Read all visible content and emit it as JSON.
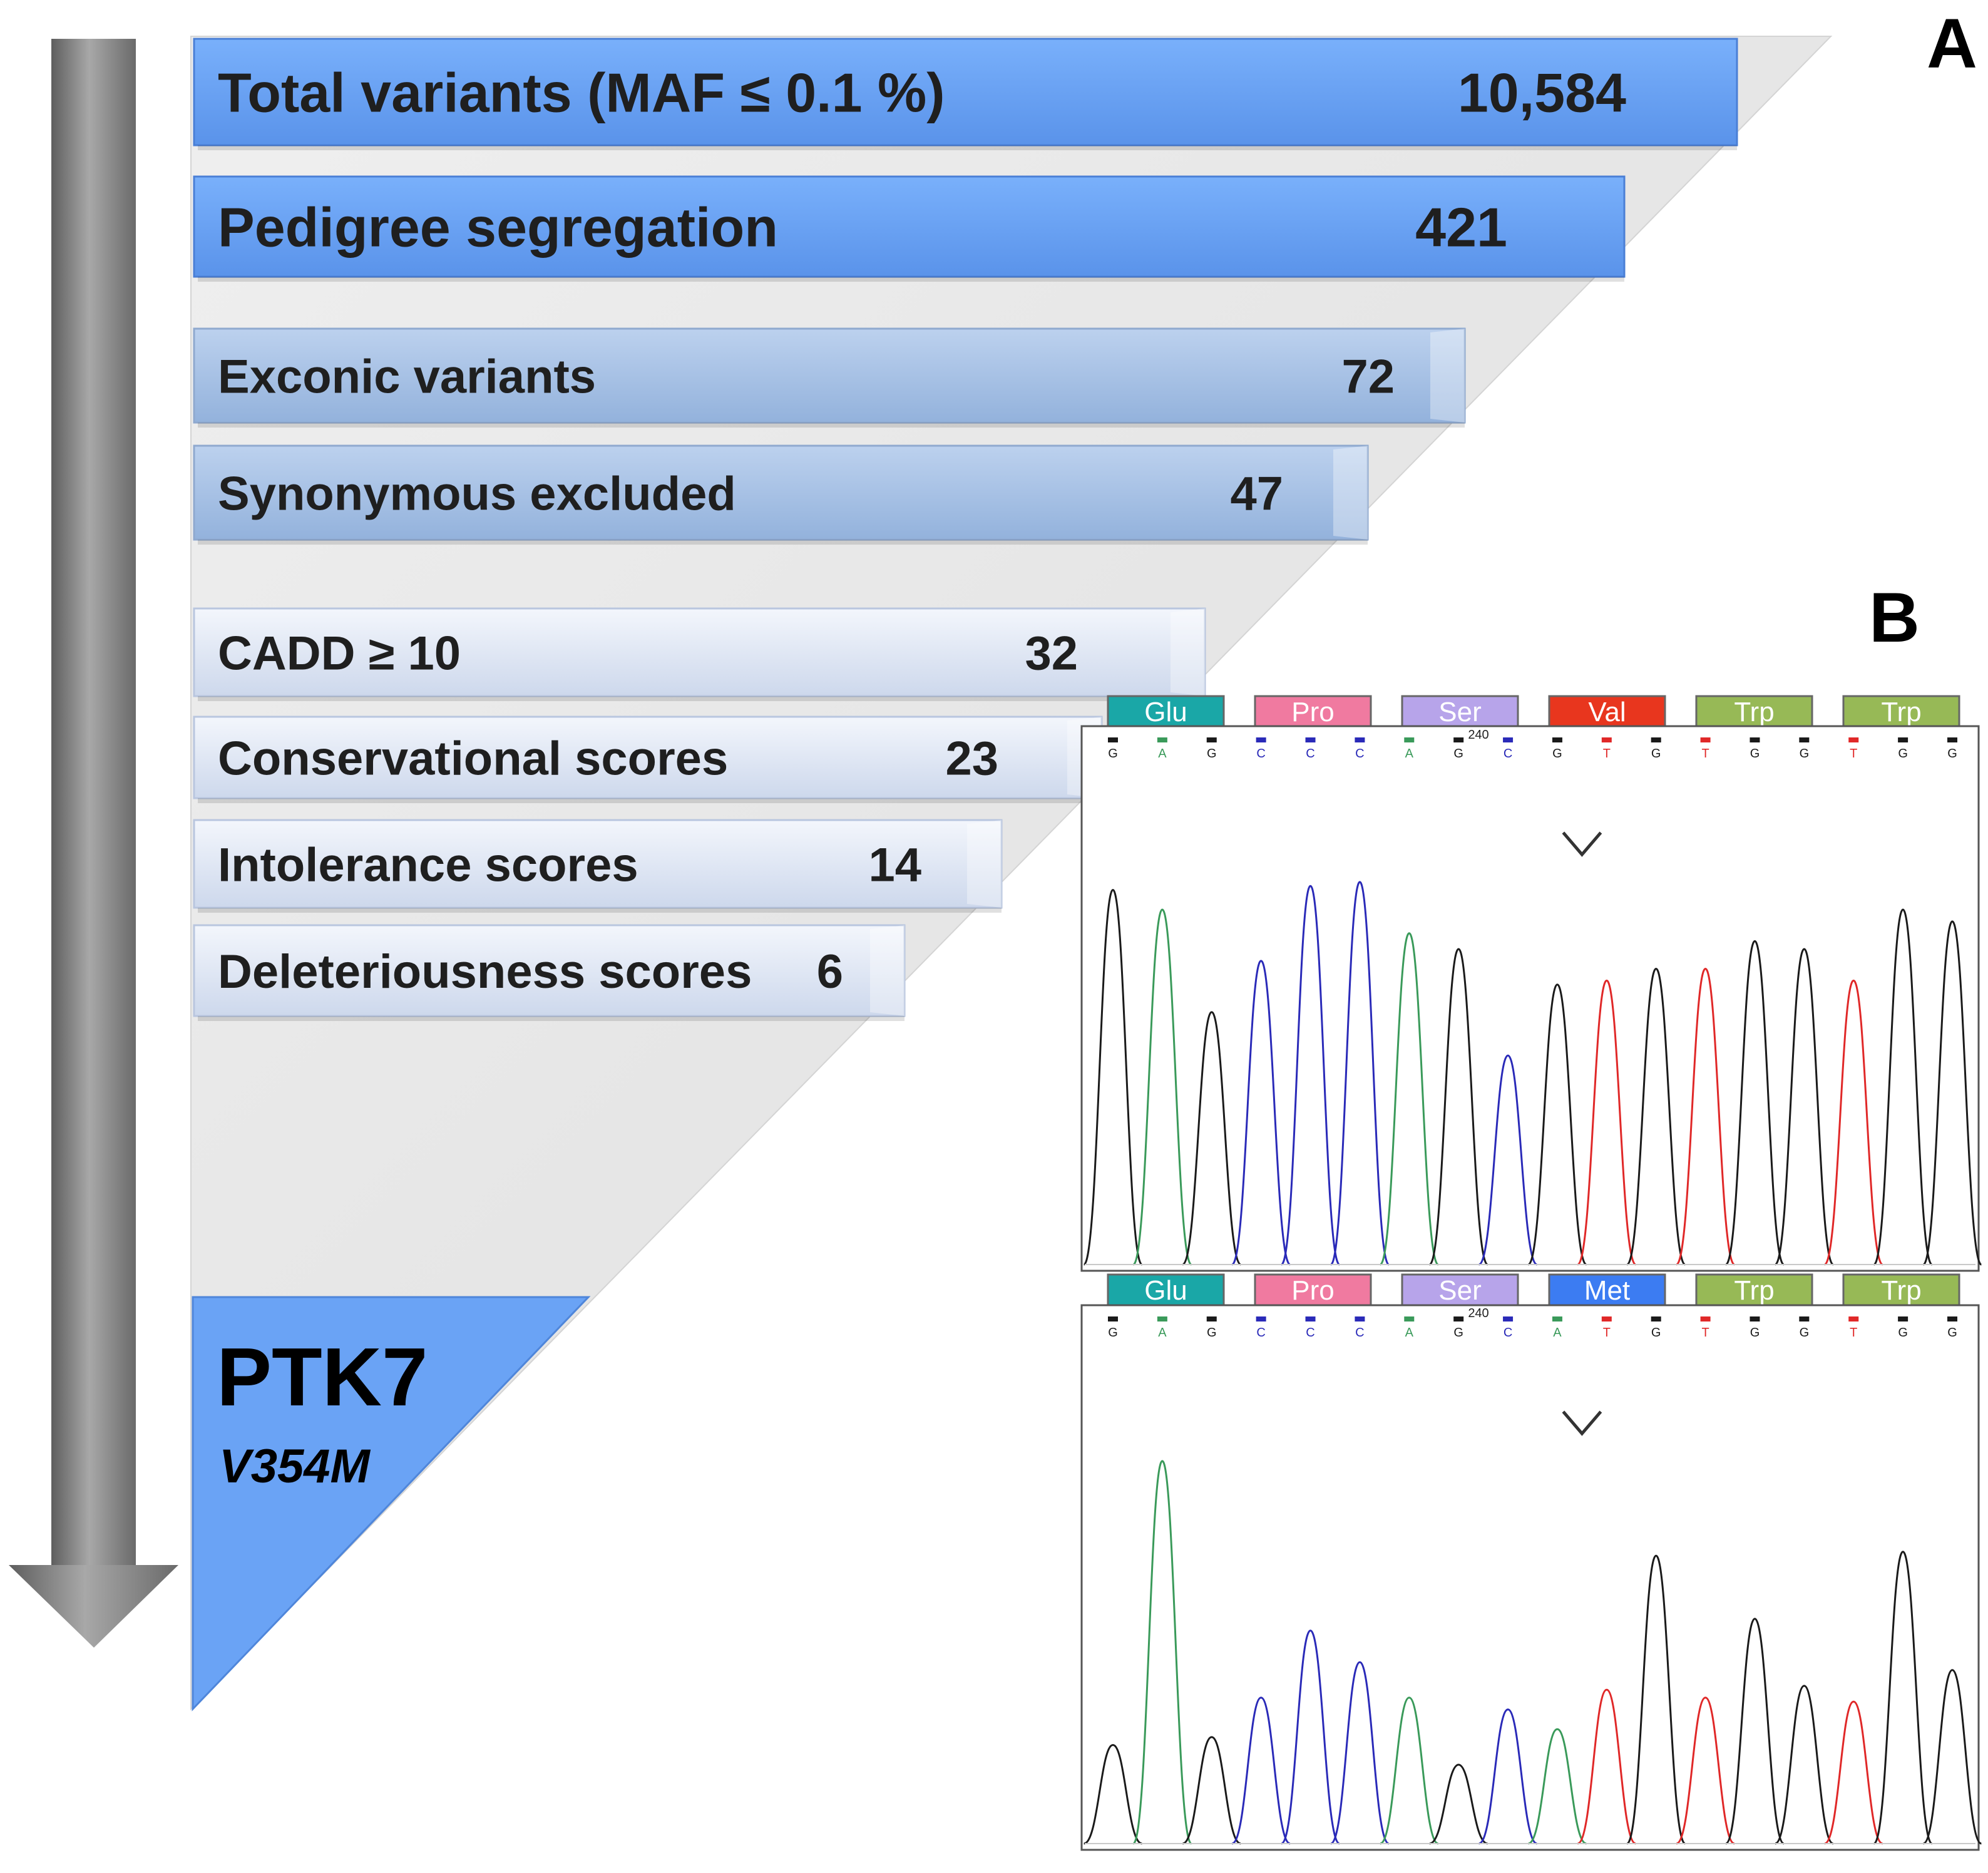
{
  "panel_a": {
    "label": "A",
    "steps": [
      {
        "label": "Total variants (MAF ≤ 0.1 %)",
        "count": "10,584",
        "tier": "strong"
      },
      {
        "label": "Pedigree segregation",
        "count": "421",
        "tier": "strong"
      },
      {
        "label": "Exconic variants",
        "count": "72",
        "tier": "medium"
      },
      {
        "label": "Synonymous excluded",
        "count": "47",
        "tier": "medium"
      },
      {
        "label": "CADD ≥ 10",
        "count": "32",
        "tier": "light"
      },
      {
        "label": "Conservational scores",
        "count": "23",
        "tier": "light"
      },
      {
        "label": "Intolerance scores",
        "count": "14",
        "tier": "light"
      },
      {
        "label": "Deleteriousness scores",
        "count": "6",
        "tier": "light"
      }
    ],
    "result": {
      "gene": "PTK7",
      "variant": "V354M"
    }
  },
  "panel_b": {
    "label": "B",
    "position_label": "240",
    "traces": [
      {
        "codons": [
          "Glu",
          "Pro",
          "Ser",
          "Val",
          "Trp",
          "Trp"
        ],
        "bases": [
          "G",
          "A",
          "G",
          "C",
          "C",
          "C",
          "A",
          "G",
          "C",
          "G",
          "T",
          "G",
          "T",
          "G",
          "G",
          "T",
          "G",
          "G"
        ],
        "peaks": [
          0.95,
          0.9,
          0.64,
          0.77,
          0.96,
          0.97,
          0.84,
          0.8,
          0.53,
          0.71,
          0.72,
          0.75,
          0.75,
          0.82,
          0.8,
          0.72,
          0.9,
          0.87
        ]
      },
      {
        "codons": [
          "Glu",
          "Pro",
          "Ser",
          "Met",
          "Trp",
          "Trp"
        ],
        "bases": [
          "G",
          "A",
          "G",
          "C",
          "C",
          "C",
          "A",
          "G",
          "C",
          "A",
          "T",
          "G",
          "T",
          "G",
          "G",
          "T",
          "G",
          "G"
        ],
        "peaks": [
          0.25,
          0.97,
          0.27,
          0.37,
          0.54,
          0.46,
          0.37,
          0.2,
          0.34,
          0.29,
          0.39,
          0.73,
          0.37,
          0.57,
          0.4,
          0.36,
          0.74,
          0.44
        ]
      }
    ]
  },
  "colors": {
    "strong_bar": "#6aa3f5",
    "medium_bar": "#a7c2e6",
    "light_bar": "#dde5f4",
    "funnel_bg": "#e6e6e6",
    "arrow": "#7d7d7d",
    "codon_Glu": "#1aa7a7",
    "codon_Pro": "#f07aa0",
    "codon_Ser": "#b7a4ea",
    "codon_Val": "#e8361e",
    "codon_Met": "#3c7cf2",
    "codon_Trp": "#97b956",
    "base_A": "#3a9a5a",
    "base_C": "#2a2ab8",
    "base_G": "#1a1a1a",
    "base_T": "#e02828"
  }
}
